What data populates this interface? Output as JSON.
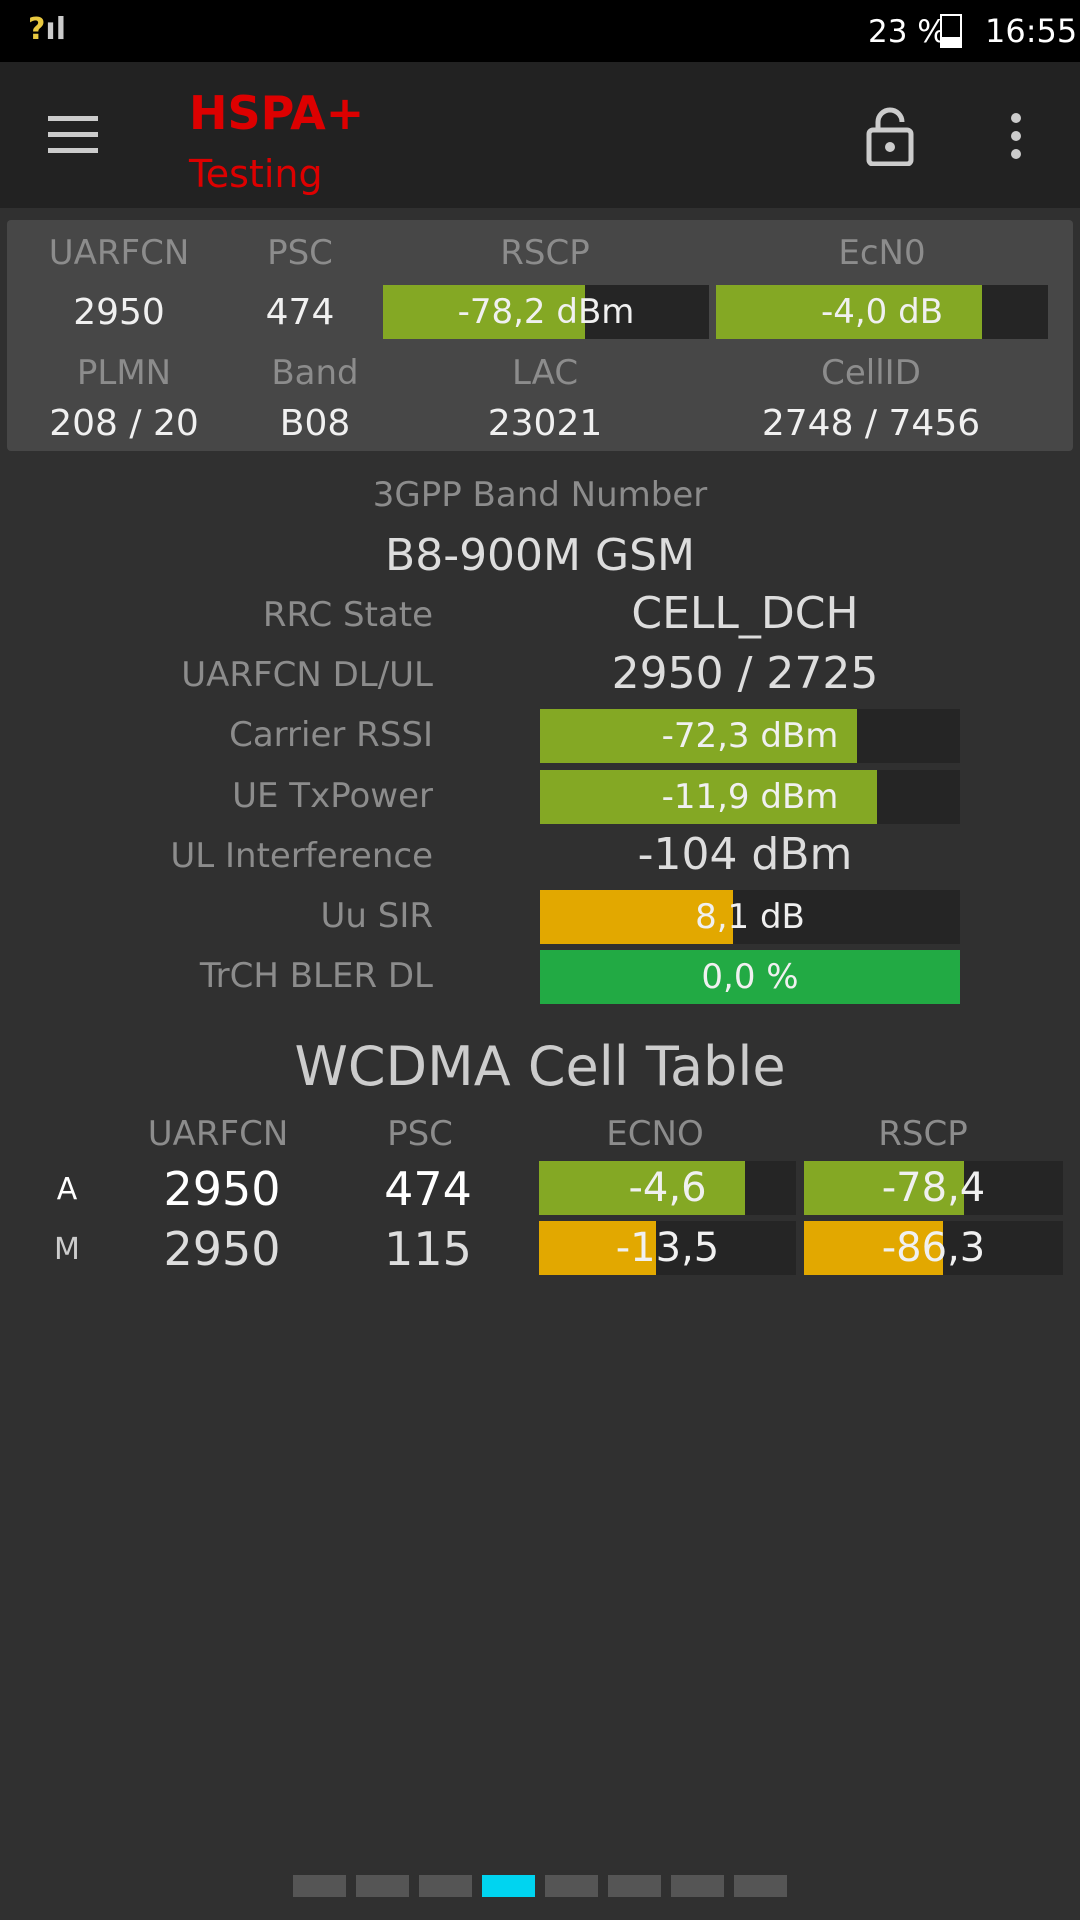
{
  "status_bar": {
    "battery": "23 %",
    "time": "16:55"
  },
  "header": {
    "title": "HSPA+",
    "subtitle": "Testing"
  },
  "serving_cell": {
    "labels_1": [
      "UARFCN",
      "PSC",
      "RSCP",
      "EcN0"
    ],
    "values_1": [
      "2950",
      "474",
      "-78,2 dBm",
      "-4,0 dB"
    ],
    "labels_2": [
      "PLMN",
      "Band",
      "LAC",
      "CellID"
    ],
    "values_2": [
      "208 / 20",
      "B08",
      "23021",
      "2748 / 7456"
    ]
  },
  "band": {
    "label": "3GPP Band Number",
    "value": "B8-900M GSM"
  },
  "details": [
    {
      "label": "RRC State",
      "value": "CELL_DCH"
    },
    {
      "label": "UARFCN DL/UL",
      "value": "2950 / 2725"
    },
    {
      "label": "Carrier RSSI",
      "value": "-72,3 dBm"
    },
    {
      "label": "UE TxPower",
      "value": "-11,9 dBm"
    },
    {
      "label": "UL Interference",
      "value": "-104 dBm"
    },
    {
      "label": "Uu SIR",
      "value": "8,1 dB"
    },
    {
      "label": "TrCH BLER DL",
      "value": "0,0 %"
    }
  ],
  "cell_table": {
    "title": "WCDMA Cell Table",
    "columns": [
      "UARFCN",
      "PSC",
      "ECNO",
      "RSCP"
    ],
    "rows": [
      [
        "A",
        "2950",
        "474",
        "-4,6",
        "-78,4"
      ],
      [
        "M",
        "2950",
        "115",
        "-13,5",
        "-86,3"
      ]
    ]
  }
}
